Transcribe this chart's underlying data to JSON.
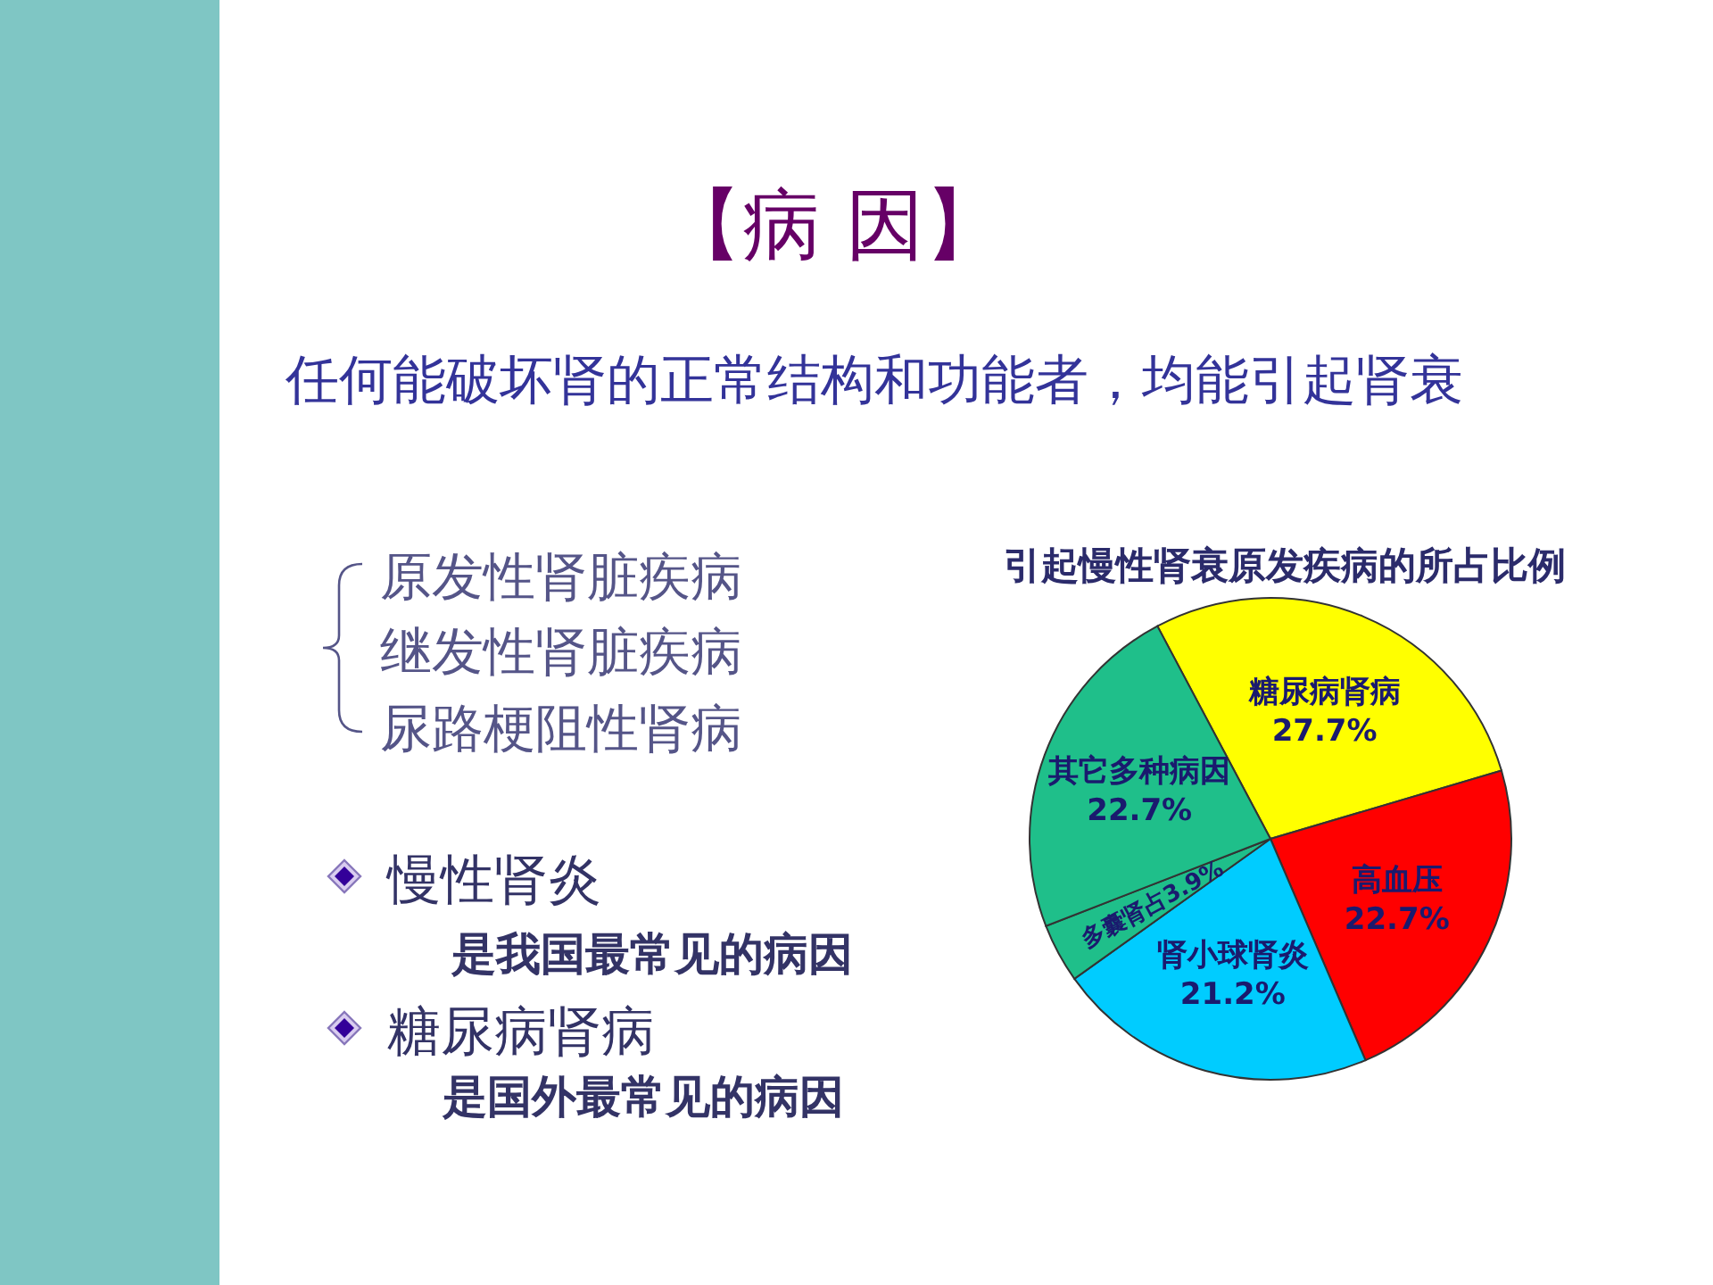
{
  "chart_data": {
    "type": "pie",
    "title": "引起慢性肾衰原发疾病的所占比例",
    "categories": [
      "糖尿病肾病",
      "高血压",
      "肾小球肾炎",
      null,
      "其它多种病因"
    ],
    "values": [
      27.7,
      22.7,
      21.2,
      3.9,
      22.7
    ],
    "colors": [
      "#ffff00",
      "#ff0000",
      "#00ccff",
      "#1fbf8a",
      "#1fbf8a"
    ],
    "value_labels": [
      "27.7%",
      "22.7%",
      "21.2%",
      "多囊肾占3.9%",
      "22.7%"
    ],
    "annotations": [
      "【病 因】",
      "任何能破坏肾的正常结构和功能者，均能引起肾衰",
      "原发性肾脏疾病",
      "继发性肾脏疾病",
      "尿路梗阻性肾病",
      "慢性肾炎",
      "是我国最常见的病因",
      "糖尿病肾病",
      "是国外最常见的病因"
    ]
  }
}
